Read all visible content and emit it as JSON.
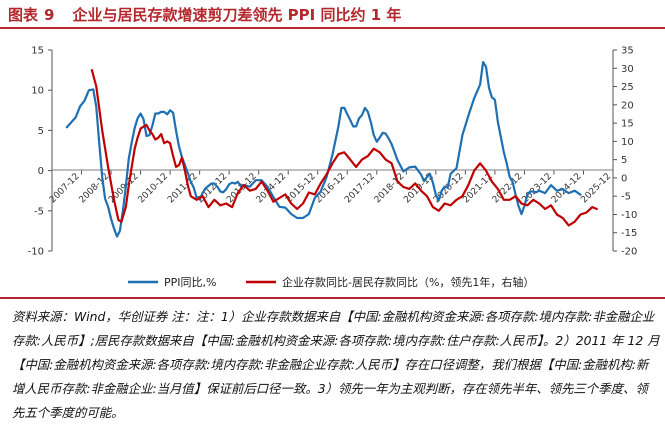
{
  "figure": {
    "label": "图表",
    "number": "9",
    "title": "企业与居民存款增速剪刀差领先 PPI 同比约 1 年"
  },
  "source_note": "资料来源：Wind，华创证券 注：注：1）企业存款数据来自【中国:金融机构资金来源:各项存款:境内存款:非金融企业存款:人民币】;居民存款数据来自【中国:金融机构资金来源:各项存款:境内存款:住户存款:人民币】。2）2011 年 12 月【中国:金融机构资金来源:各项存款:境内存款:非金融企业存款:人民币】存在口径调整，我们根据【中国:金融机构:新增人民币存款:非金融企业:当月值】保证前后口径一致。3）领先一年为主观判断，存在领先半年、领先三个季度、领先五个季度的可能。",
  "colors": {
    "ppi": "#1f6fb3",
    "spread": "#c00000",
    "title": "#b3282d"
  },
  "chart_data": {
    "type": "line",
    "x_tick_labels": [
      "2007-12",
      "2008-12",
      "2009-12",
      "2010-12",
      "2011-12",
      "2012-12",
      "2013-12",
      "2014-12",
      "2015-12",
      "2016-12",
      "2017-12",
      "2018-12",
      "2019-12",
      "2020-12",
      "2021-12",
      "2022-12",
      "2023-12",
      "2024-12",
      "2025-12"
    ],
    "left_axis": {
      "min": -10,
      "max": 15,
      "ticks": [
        15,
        10,
        5,
        0,
        -5,
        -10
      ]
    },
    "right_axis": {
      "min": -20,
      "max": 35,
      "ticks": [
        35,
        30,
        25,
        20,
        15,
        10,
        5,
        0,
        -5,
        -10,
        -15,
        -20
      ]
    },
    "legend_position": "bottom",
    "series": [
      {
        "name": "PPI同比,%",
        "axis": "left",
        "points": [
          [
            0,
            5.4
          ],
          [
            0.15,
            6.0
          ],
          [
            0.3,
            6.6
          ],
          [
            0.45,
            8.0
          ],
          [
            0.6,
            8.7
          ],
          [
            0.75,
            10.0
          ],
          [
            0.9,
            10.1
          ],
          [
            1.0,
            7.9
          ],
          [
            1.1,
            3.5
          ],
          [
            1.2,
            -0.8
          ],
          [
            1.3,
            -3.5
          ],
          [
            1.4,
            -4.5
          ],
          [
            1.5,
            -6.0
          ],
          [
            1.6,
            -7.2
          ],
          [
            1.7,
            -8.2
          ],
          [
            1.8,
            -7.5
          ],
          [
            1.9,
            -5.0
          ],
          [
            2.0,
            -2.0
          ],
          [
            2.1,
            1.5
          ],
          [
            2.2,
            3.5
          ],
          [
            2.3,
            5.3
          ],
          [
            2.4,
            6.5
          ],
          [
            2.5,
            7.1
          ],
          [
            2.6,
            6.4
          ],
          [
            2.7,
            4.3
          ],
          [
            2.8,
            4.4
          ],
          [
            2.9,
            5.6
          ],
          [
            3.0,
            7.1
          ],
          [
            3.1,
            7.1
          ],
          [
            3.2,
            7.3
          ],
          [
            3.3,
            7.3
          ],
          [
            3.4,
            7.0
          ],
          [
            3.5,
            7.5
          ],
          [
            3.6,
            7.2
          ],
          [
            3.7,
            5.0
          ],
          [
            3.8,
            3.0
          ],
          [
            3.9,
            1.7
          ],
          [
            4.0,
            0.7
          ],
          [
            4.1,
            -0.3
          ],
          [
            4.2,
            -1.4
          ],
          [
            4.3,
            -2.1
          ],
          [
            4.4,
            -3.4
          ],
          [
            4.5,
            -3.6
          ],
          [
            4.6,
            -2.8
          ],
          [
            4.7,
            -2.2
          ],
          [
            4.8,
            -1.9
          ],
          [
            4.9,
            -1.6
          ],
          [
            5.0,
            -1.6
          ],
          [
            5.1,
            -2.0
          ],
          [
            5.2,
            -2.6
          ],
          [
            5.3,
            -2.7
          ],
          [
            5.4,
            -2.3
          ],
          [
            5.5,
            -1.7
          ],
          [
            5.6,
            -1.5
          ],
          [
            5.7,
            -1.6
          ],
          [
            5.8,
            -1.4
          ],
          [
            5.9,
            -2.0
          ],
          [
            6.0,
            -1.8
          ],
          [
            6.2,
            -2.0
          ],
          [
            6.4,
            -1.2
          ],
          [
            6.6,
            -1.2
          ],
          [
            6.8,
            -2.0
          ],
          [
            7.0,
            -3.3
          ],
          [
            7.2,
            -4.5
          ],
          [
            7.4,
            -4.6
          ],
          [
            7.6,
            -5.4
          ],
          [
            7.8,
            -5.9
          ],
          [
            8.0,
            -5.9
          ],
          [
            8.2,
            -5.4
          ],
          [
            8.4,
            -3.4
          ],
          [
            8.6,
            -2.6
          ],
          [
            8.8,
            -0.8
          ],
          [
            9.0,
            2.0
          ],
          [
            9.2,
            5.5
          ],
          [
            9.3,
            7.8
          ],
          [
            9.4,
            7.8
          ],
          [
            9.5,
            7.0
          ],
          [
            9.6,
            6.3
          ],
          [
            9.7,
            5.5
          ],
          [
            9.8,
            5.5
          ],
          [
            9.9,
            6.5
          ],
          [
            10.0,
            6.9
          ],
          [
            10.1,
            7.8
          ],
          [
            10.2,
            7.3
          ],
          [
            10.3,
            6.0
          ],
          [
            10.4,
            4.4
          ],
          [
            10.5,
            3.6
          ],
          [
            10.6,
            4.1
          ],
          [
            10.7,
            4.7
          ],
          [
            10.8,
            4.6
          ],
          [
            10.9,
            4.0
          ],
          [
            11.0,
            3.3
          ],
          [
            11.2,
            1.3
          ],
          [
            11.4,
            -0.1
          ],
          [
            11.6,
            0.4
          ],
          [
            11.8,
            0.5
          ],
          [
            12.0,
            -0.5
          ],
          [
            12.1,
            -1.3
          ],
          [
            12.2,
            -0.8
          ],
          [
            12.3,
            -0.4
          ],
          [
            12.4,
            -1.5
          ],
          [
            12.5,
            -3.0
          ],
          [
            12.6,
            -3.7
          ],
          [
            12.7,
            -2.5
          ],
          [
            12.8,
            -2.0
          ],
          [
            12.9,
            -2.1
          ],
          [
            13.0,
            -0.4
          ],
          [
            13.2,
            0.3
          ],
          [
            13.4,
            4.4
          ],
          [
            13.6,
            6.8
          ],
          [
            13.8,
            9.0
          ],
          [
            14.0,
            10.7
          ],
          [
            14.1,
            13.5
          ],
          [
            14.2,
            12.9
          ],
          [
            14.3,
            10.3
          ],
          [
            14.4,
            9.1
          ],
          [
            14.5,
            8.8
          ],
          [
            14.6,
            6.1
          ],
          [
            14.7,
            4.2
          ],
          [
            14.8,
            2.3
          ],
          [
            14.9,
            0.9
          ],
          [
            15.0,
            -0.8
          ],
          [
            15.1,
            -1.4
          ],
          [
            15.2,
            -3.0
          ],
          [
            15.3,
            -4.4
          ],
          [
            15.4,
            -5.4
          ],
          [
            15.5,
            -4.4
          ],
          [
            15.6,
            -3.0
          ],
          [
            15.7,
            -2.6
          ],
          [
            15.8,
            -2.6
          ],
          [
            15.9,
            -2.7
          ],
          [
            16.0,
            -2.5
          ],
          [
            16.2,
            -2.8
          ],
          [
            16.4,
            -1.8
          ],
          [
            16.6,
            -2.5
          ],
          [
            16.8,
            -2.3
          ],
          [
            17.0,
            -2.8
          ],
          [
            17.2,
            -2.5
          ],
          [
            17.4,
            -3.0
          ]
        ]
      },
      {
        "name": "企业存款同比-居民存款同比（%，领先1年，右轴）",
        "axis": "right",
        "points": [
          [
            0.85,
            29.5
          ],
          [
            1.0,
            25.0
          ],
          [
            1.2,
            13.0
          ],
          [
            1.4,
            3.0
          ],
          [
            1.6,
            -6.0
          ],
          [
            1.75,
            -11.5
          ],
          [
            1.85,
            -12.0
          ],
          [
            2.0,
            -8.0
          ],
          [
            2.1,
            -2.0
          ],
          [
            2.2,
            3.0
          ],
          [
            2.3,
            8.0
          ],
          [
            2.4,
            11.0
          ],
          [
            2.5,
            13.5
          ],
          [
            2.6,
            14.0
          ],
          [
            2.7,
            14.5
          ],
          [
            2.8,
            13.0
          ],
          [
            2.9,
            12.0
          ],
          [
            3.0,
            10.5
          ],
          [
            3.1,
            11.0
          ],
          [
            3.2,
            12.0
          ],
          [
            3.3,
            9.5
          ],
          [
            3.4,
            10.0
          ],
          [
            3.5,
            9.5
          ],
          [
            3.6,
            6.0
          ],
          [
            3.7,
            3.0
          ],
          [
            3.8,
            3.5
          ],
          [
            3.9,
            5.5
          ],
          [
            4.0,
            2.0
          ],
          [
            4.1,
            -2.0
          ],
          [
            4.2,
            -5.0
          ],
          [
            4.4,
            -6.0
          ],
          [
            4.6,
            -5.0
          ],
          [
            4.8,
            -8.0
          ],
          [
            5.0,
            -6.0
          ],
          [
            5.2,
            -7.5
          ],
          [
            5.4,
            -7.0
          ],
          [
            5.6,
            -8.0
          ],
          [
            5.8,
            -4.0
          ],
          [
            6.0,
            -2.0
          ],
          [
            6.2,
            -3.5
          ],
          [
            6.4,
            -3.0
          ],
          [
            6.6,
            -1.0
          ],
          [
            6.8,
            -3.5
          ],
          [
            7.0,
            -6.5
          ],
          [
            7.2,
            -5.5
          ],
          [
            7.4,
            -4.5
          ],
          [
            7.6,
            -7.0
          ],
          [
            7.8,
            -8.5
          ],
          [
            8.0,
            -7.0
          ],
          [
            8.2,
            -4.0
          ],
          [
            8.4,
            -4.5
          ],
          [
            8.6,
            -1.5
          ],
          [
            8.8,
            1.0
          ],
          [
            9.0,
            4.0
          ],
          [
            9.2,
            6.5
          ],
          [
            9.4,
            7.0
          ],
          [
            9.6,
            5.0
          ],
          [
            9.8,
            3.0
          ],
          [
            10.0,
            5.0
          ],
          [
            10.2,
            6.0
          ],
          [
            10.4,
            8.0
          ],
          [
            10.6,
            7.0
          ],
          [
            10.8,
            5.0
          ],
          [
            11.0,
            4.0
          ],
          [
            11.2,
            -1.0
          ],
          [
            11.4,
            -2.5
          ],
          [
            11.6,
            -3.0
          ],
          [
            11.8,
            -1.5
          ],
          [
            12.0,
            -3.5
          ],
          [
            12.2,
            -5.0
          ],
          [
            12.4,
            -8.0
          ],
          [
            12.6,
            -9.0
          ],
          [
            12.8,
            -7.0
          ],
          [
            13.0,
            -7.5
          ],
          [
            13.2,
            -6.0
          ],
          [
            13.4,
            -5.0
          ],
          [
            13.6,
            -2.0
          ],
          [
            13.8,
            2.0
          ],
          [
            14.0,
            4.0
          ],
          [
            14.2,
            2.0
          ],
          [
            14.4,
            -1.0
          ],
          [
            14.6,
            -3.0
          ],
          [
            14.8,
            -6.0
          ],
          [
            15.0,
            -6.0
          ],
          [
            15.2,
            -5.0
          ],
          [
            15.4,
            -7.0
          ],
          [
            15.6,
            -7.5
          ],
          [
            15.8,
            -6.0
          ],
          [
            16.0,
            -7.0
          ],
          [
            16.2,
            -8.5
          ],
          [
            16.4,
            -7.5
          ],
          [
            16.6,
            -10.0
          ],
          [
            16.8,
            -11.0
          ],
          [
            17.0,
            -13.0
          ],
          [
            17.2,
            -12.0
          ],
          [
            17.4,
            -10.0
          ],
          [
            17.6,
            -9.5
          ],
          [
            17.8,
            -8.0
          ],
          [
            17.95,
            -8.5
          ]
        ]
      }
    ]
  }
}
